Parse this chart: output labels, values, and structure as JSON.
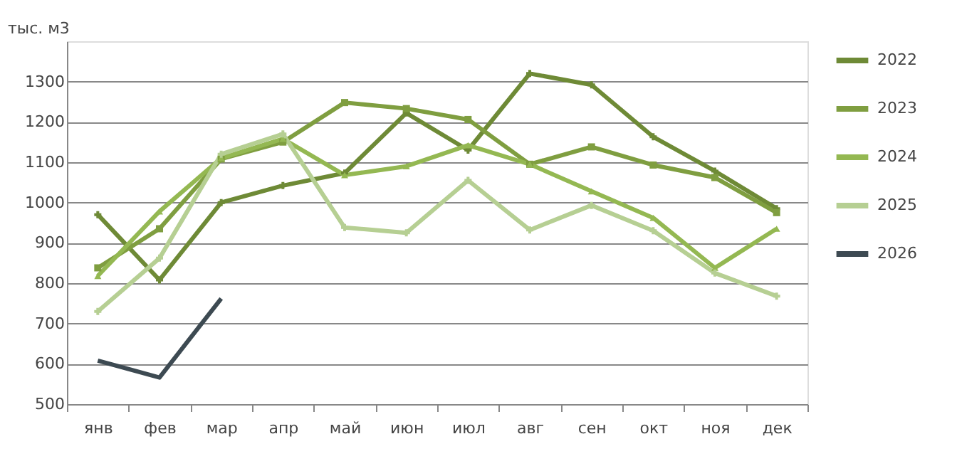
{
  "chart_data": {
    "type": "line",
    "ylabel": "тыс. м3",
    "categories": [
      "янв",
      "фев",
      "мар",
      "апр",
      "май",
      "июн",
      "июл",
      "авг",
      "сен",
      "окт",
      "ноя",
      "дек"
    ],
    "series": [
      {
        "name": "2022",
        "color": "#6e8a36",
        "marker": "cross",
        "values": [
          970,
          808,
          1000,
          1042,
          1073,
          1222,
          1130,
          1320,
          1292,
          1163,
          1078,
          985
        ]
      },
      {
        "name": "2023",
        "color": "#7f9e40",
        "marker": "square",
        "values": [
          838,
          935,
          1108,
          1150,
          1248,
          1233,
          1206,
          1095,
          1138,
          1093,
          1062,
          975
        ]
      },
      {
        "name": "2024",
        "color": "#94b852",
        "marker": "triangle",
        "values": [
          818,
          978,
          1110,
          1158,
          1068,
          1090,
          1142,
          1095,
          1028,
          962,
          838,
          935
        ]
      },
      {
        "name": "2025",
        "color": "#b6cf93",
        "marker": "cross",
        "values": [
          730,
          862,
          1120,
          1170,
          938,
          925,
          1055,
          932,
          993,
          930,
          825,
          768
        ]
      },
      {
        "name": "2026",
        "color": "#3d4a52",
        "marker": "none",
        "values": [
          608,
          566,
          762,
          null,
          null,
          null,
          null,
          null,
          null,
          null,
          null,
          null
        ]
      }
    ],
    "ylim": [
      500,
      1400
    ],
    "yticks": [
      500,
      600,
      700,
      800,
      900,
      1000,
      1100,
      1200,
      1300
    ],
    "grid": "y",
    "legend": "right",
    "line_style": "solid"
  }
}
